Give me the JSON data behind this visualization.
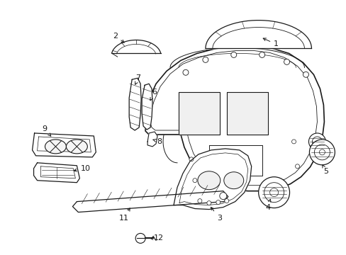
{
  "background_color": "#ffffff",
  "line_color": "#1a1a1a",
  "fig_width": 4.89,
  "fig_height": 3.6,
  "dpi": 100,
  "font_size": 8,
  "lw": 0.9
}
